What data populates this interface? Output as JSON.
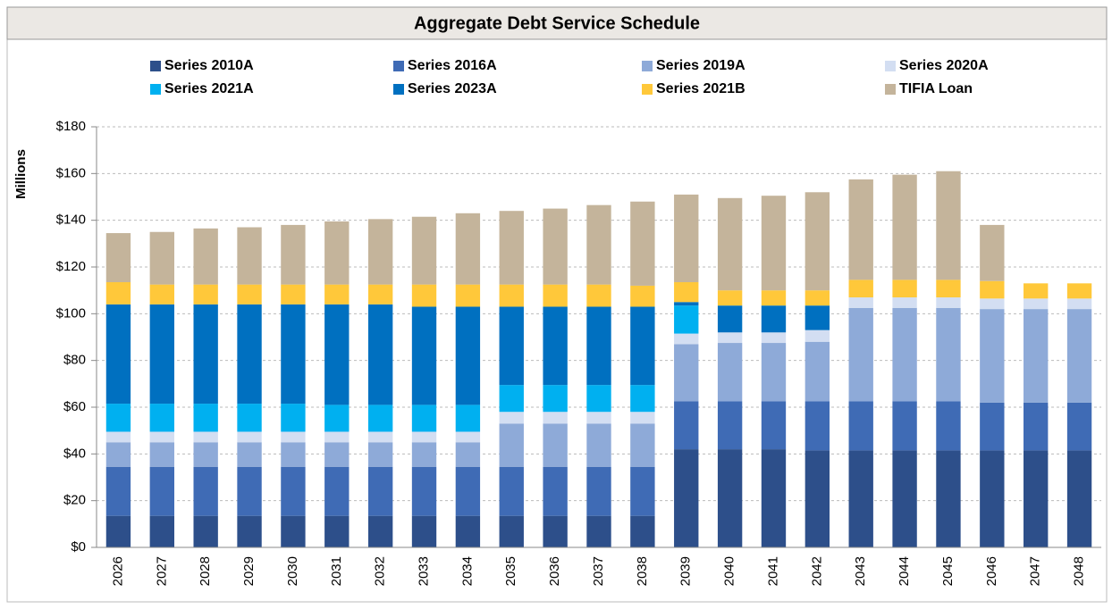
{
  "chart_data": {
    "type": "stacked_bar",
    "title": "Aggregate Debt Service Schedule",
    "y_label": "Millions",
    "categories": [
      "2026",
      "2027",
      "2028",
      "2029",
      "2030",
      "2031",
      "2032",
      "2033",
      "2034",
      "2035",
      "2036",
      "2037",
      "2038",
      "2039",
      "2040",
      "2041",
      "2042",
      "2043",
      "2044",
      "2045",
      "2046",
      "2047",
      "2048"
    ],
    "series": [
      {
        "name": "Series 2010A",
        "color": "#2d4f8a",
        "values": [
          13.5,
          13.5,
          13.5,
          13.5,
          13.5,
          13.5,
          13.5,
          13.5,
          13.5,
          13.5,
          13.5,
          13.5,
          13.5,
          42,
          42,
          42,
          41.5,
          41.5,
          41.5,
          41.5,
          41.5,
          41.5,
          41.5
        ]
      },
      {
        "name": "Series 2016A",
        "color": "#3f6bb5",
        "values": [
          21,
          21,
          21,
          21,
          21,
          21,
          21,
          21,
          21,
          21,
          21,
          21,
          21,
          20.5,
          20.5,
          20.5,
          21,
          21,
          21,
          21,
          20.5,
          20.5,
          20.5
        ]
      },
      {
        "name": "Series 2019A",
        "color": "#8eaad8",
        "values": [
          10.5,
          10.5,
          10.5,
          10.5,
          10.5,
          10.5,
          10.5,
          10.5,
          10.5,
          18.5,
          18.5,
          18.5,
          18.5,
          24.5,
          25,
          25,
          25.5,
          40,
          40,
          40,
          40,
          40,
          40
        ]
      },
      {
        "name": "Series 2020A",
        "color": "#d3def2",
        "values": [
          4.5,
          4.5,
          4.5,
          4.5,
          4.5,
          4.5,
          4.5,
          4.5,
          4.5,
          5,
          5,
          5,
          5,
          4.5,
          4.5,
          4.5,
          5,
          4.5,
          4.5,
          4.5,
          4.5,
          4.5,
          4.5
        ]
      },
      {
        "name": "Series 2021A",
        "color": "#00b0f0",
        "values": [
          12,
          12,
          12,
          12,
          12,
          11.5,
          11.5,
          11.5,
          11.5,
          11.5,
          11.5,
          11.5,
          11.5,
          12,
          0,
          0,
          0,
          0,
          0,
          0,
          0,
          0,
          0
        ]
      },
      {
        "name": "Series 2023A",
        "color": "#0070c0",
        "values": [
          42.5,
          42.5,
          42.5,
          42.5,
          42.5,
          43,
          43,
          42,
          42,
          33.5,
          33.5,
          33.5,
          33.5,
          1.5,
          11.5,
          11.5,
          10.5,
          0,
          0,
          0,
          0,
          0,
          0
        ]
      },
      {
        "name": "Series 2021B",
        "color": "#ffc83a",
        "values": [
          9.5,
          8.5,
          8.5,
          8.5,
          8.5,
          8.5,
          8.5,
          9.5,
          9.5,
          9.5,
          9.5,
          9.5,
          9,
          8.5,
          6.5,
          6.5,
          6.5,
          7.5,
          7.5,
          7.5,
          7.5,
          6.5,
          6.5
        ]
      },
      {
        "name": "TIFIA Loan",
        "color": "#c4b49b",
        "values": [
          21,
          22.5,
          24,
          24.5,
          25.5,
          27,
          28,
          29,
          30.5,
          31.5,
          32.5,
          34,
          36,
          37.5,
          39.5,
          40.5,
          42,
          43,
          45,
          46.5,
          24,
          0,
          0
        ]
      }
    ],
    "ylim": [
      0,
      180
    ],
    "yticks": [
      {
        "value": 0,
        "label": "$0"
      },
      {
        "value": 20,
        "label": "$20"
      },
      {
        "value": 40,
        "label": "$40"
      },
      {
        "value": 60,
        "label": "$60"
      },
      {
        "value": 80,
        "label": "$80"
      },
      {
        "value": 100,
        "label": "$100"
      },
      {
        "value": 120,
        "label": "$120"
      },
      {
        "value": 140,
        "label": "$140"
      },
      {
        "value": 160,
        "label": "$160"
      },
      {
        "value": 180,
        "label": "$180"
      }
    ],
    "grid": true,
    "legend": "top"
  }
}
